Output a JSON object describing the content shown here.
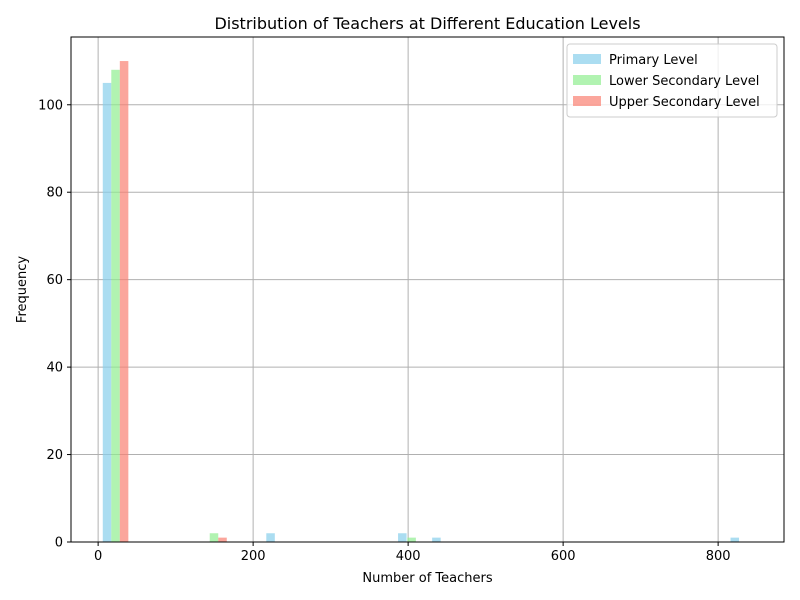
{
  "chart_data": {
    "type": "bar",
    "title": "Distribution of Teachers at Different Education Levels",
    "xlabel": "Number of Teachers",
    "ylabel": "Frequency",
    "xlim": [
      -35,
      885
    ],
    "ylim": [
      0,
      115.5
    ],
    "xticks": [
      0,
      200,
      400,
      600,
      800
    ],
    "yticks": [
      0,
      20,
      40,
      60,
      80,
      100
    ],
    "grid": true,
    "legend_position": "top-right",
    "bin_width": 11,
    "series": [
      {
        "name": "Primary Level",
        "color": "#87CEEB",
        "bins": [
          {
            "x": 11.5,
            "value": 105
          },
          {
            "x": 222.5,
            "value": 2
          },
          {
            "x": 392.5,
            "value": 2
          },
          {
            "x": 436.5,
            "value": 1
          },
          {
            "x": 821.5,
            "value": 1
          }
        ]
      },
      {
        "name": "Lower Secondary Level",
        "color": "#90EE90",
        "bins": [
          {
            "x": 22.5,
            "value": 108
          },
          {
            "x": 149.5,
            "value": 2
          },
          {
            "x": 404.5,
            "value": 1
          }
        ]
      },
      {
        "name": "Upper Secondary Level",
        "color": "#FA8072",
        "bins": [
          {
            "x": 33.5,
            "value": 110
          },
          {
            "x": 160.5,
            "value": 1
          }
        ]
      }
    ]
  }
}
